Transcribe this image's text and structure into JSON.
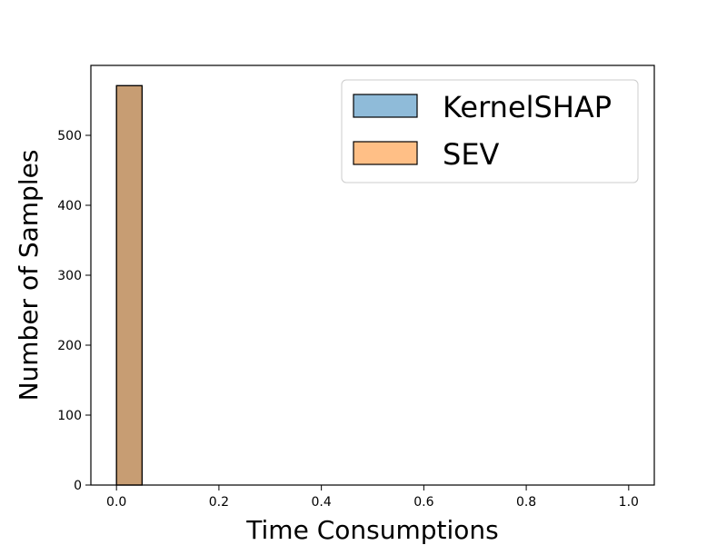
{
  "chart_data": {
    "type": "bar",
    "title": "",
    "xlabel": "Time Consumptions",
    "ylabel": "Number of Samples",
    "xlim": [
      -0.05,
      1.05
    ],
    "ylim": [
      0,
      600
    ],
    "xticks": [
      0.0,
      0.2,
      0.4,
      0.6,
      0.8,
      1.0
    ],
    "xtick_labels": [
      "0.0",
      "0.2",
      "0.4",
      "0.6",
      "0.8",
      "1.0"
    ],
    "yticks": [
      0,
      100,
      200,
      300,
      400,
      500
    ],
    "ytick_labels": [
      "0",
      "100",
      "200",
      "300",
      "400",
      "500"
    ],
    "grid": false,
    "legend_position": "top-right",
    "series": [
      {
        "name": "KernelSHAP",
        "color": "#1f77b4",
        "alpha": 0.5,
        "bins": [
          {
            "x0": 0.0,
            "x1": 0.05,
            "count": 571
          }
        ]
      },
      {
        "name": "SEV",
        "color": "#ff7f0e",
        "alpha": 0.5,
        "bins": [
          {
            "x0": 0.0,
            "x1": 0.05,
            "count": 571
          }
        ]
      }
    ]
  }
}
